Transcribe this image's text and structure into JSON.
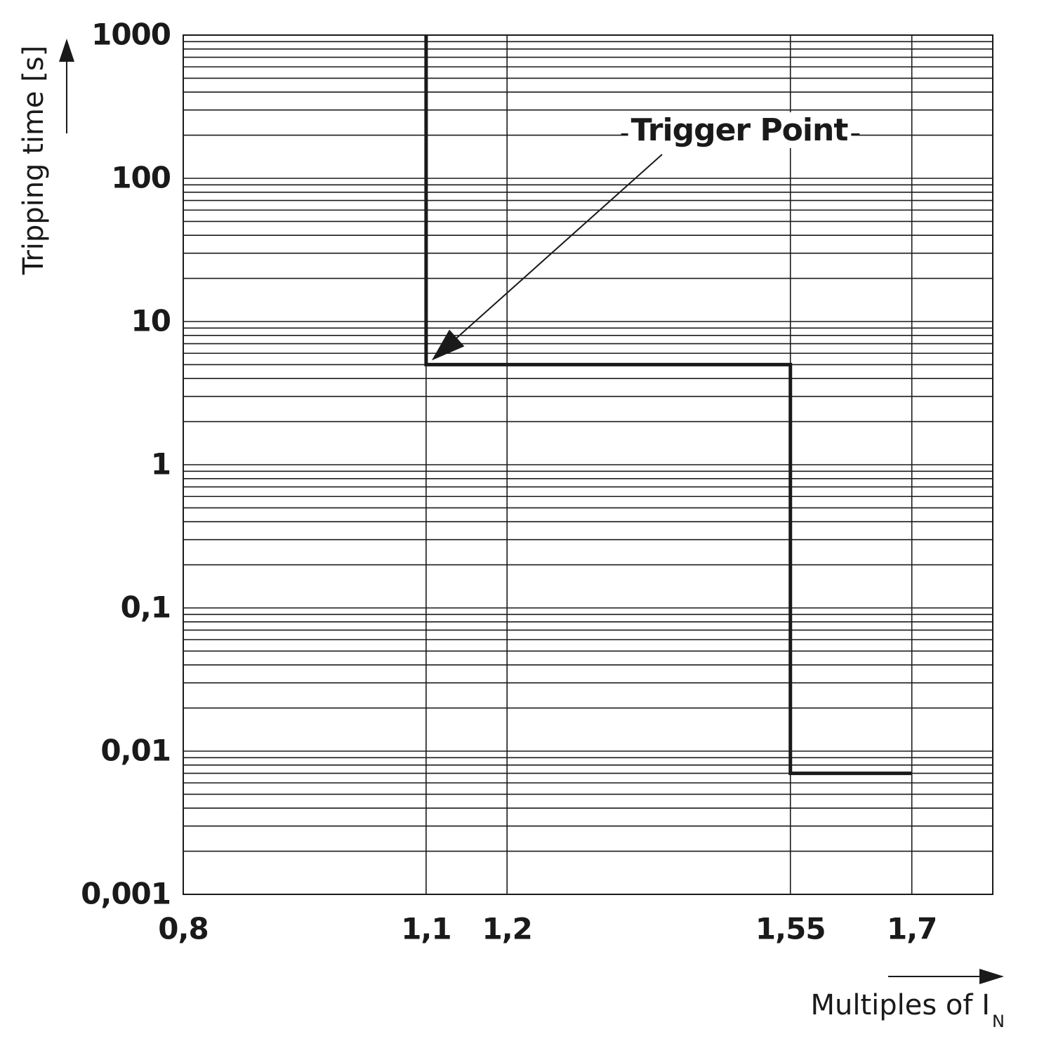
{
  "chart_data": {
    "type": "line",
    "xlabel": "Multiples of I",
    "xlabel_subscript": "N",
    "ylabel": "Tripping time [s]",
    "x": [
      1.1,
      1.1,
      1.55,
      1.55,
      1.7
    ],
    "series": [
      {
        "color": "#1a1a1a",
        "values": [
          1000,
          5,
          5,
          0.007,
          0.007
        ]
      }
    ],
    "xlim": [
      0.8,
      1.8
    ],
    "xticks": [
      {
        "value": 0.8,
        "label": "0,8"
      },
      {
        "value": 1.1,
        "label": "1,1"
      },
      {
        "value": 1.2,
        "label": "1,2"
      },
      {
        "value": 1.55,
        "label": "1,55"
      },
      {
        "value": 1.7,
        "label": "1,7"
      }
    ],
    "ylim": [
      0.001,
      1000
    ],
    "yticks": [
      {
        "value": 0.001,
        "label": "0,001"
      },
      {
        "value": 0.01,
        "label": "0,01"
      },
      {
        "value": 0.1,
        "label": "0,1"
      },
      1,
      10,
      100,
      1000
    ],
    "ylog": true,
    "grid": true,
    "minor_grid": true,
    "annotations": [
      {
        "text": "Trigger Point",
        "x": 1.1,
        "y": 5
      }
    ]
  }
}
